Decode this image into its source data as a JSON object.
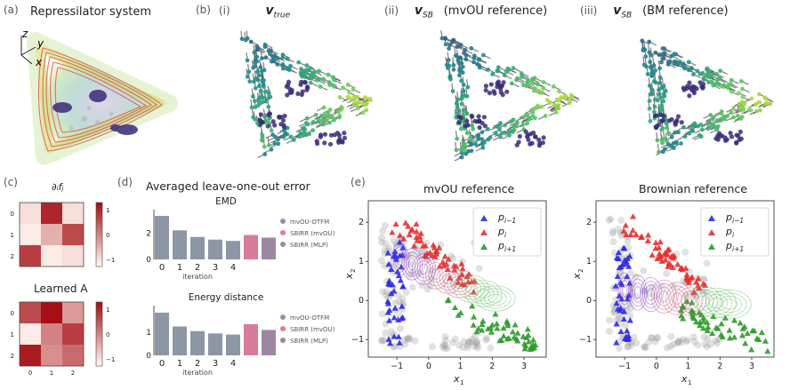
{
  "panel_a": {
    "label": "(a)",
    "title": "Repressilator system",
    "axes": [
      "z",
      "y",
      "x"
    ]
  },
  "panel_b": {
    "label": "(b)",
    "sub": [
      {
        "roman": "(i)",
        "var": "v",
        "sub": "true",
        "rest": ""
      },
      {
        "roman": "(ii)",
        "var": "v",
        "sub": "SB",
        "rest": "(mvOU reference)"
      },
      {
        "roman": "(iii)",
        "var": "v",
        "sub": "SB",
        "rest": "(BM reference)"
      }
    ]
  },
  "panel_c": {
    "label": "(c)",
    "title_top": "∂ᵢfⱼ",
    "title_bottom": "Learned A",
    "top_matrix": [
      [
        0.1,
        0.9,
        0.1
      ],
      [
        0.05,
        0.3,
        0.75
      ],
      [
        0.8,
        0.05,
        0.1
      ]
    ],
    "bottom_matrix": [
      [
        0.75,
        1.0,
        0.4
      ],
      [
        0.05,
        0.5,
        0.8
      ],
      [
        0.95,
        0.45,
        0.6
      ]
    ],
    "row_ticks": [
      "0",
      "1",
      "2"
    ],
    "col_ticks": [
      "0",
      "1",
      "2"
    ],
    "cbar_ticks": [
      "1",
      "0",
      "−1"
    ]
  },
  "panel_d": {
    "label": "(d)",
    "title": "Averaged leave-one-out error",
    "legend": [
      "mvOU-OTFM",
      "SBIRR (mvOU)",
      "SBIRR (MLP)"
    ],
    "legend_colors": [
      "#8c96a5",
      "#d97b9a",
      "#9e86a1"
    ],
    "colors": [
      "#8c96a5",
      "#8c96a5",
      "#8c96a5",
      "#8c96a5",
      "#8c96a5",
      "#d97b9a",
      "#9e86a1"
    ],
    "xticks": [
      "0",
      "1",
      "2",
      "3",
      "4"
    ],
    "xlabel": "iteration",
    "emd": {
      "subtitle": "EMD",
      "values": [
        3.3,
        2.2,
        1.7,
        1.5,
        1.4,
        1.85,
        1.65
      ],
      "yticks": [
        "0",
        "2"
      ],
      "ymax": 3.5
    },
    "energy": {
      "subtitle": "Energy distance",
      "values": [
        1.85,
        1.25,
        1.05,
        0.95,
        0.9,
        1.35,
        1.1
      ],
      "yticks": [
        "0",
        "1"
      ],
      "ymax": 2.0
    }
  },
  "panel_e": {
    "label": "(e)",
    "plots": [
      {
        "title": "mvOU reference"
      },
      {
        "title": "Brownian reference"
      }
    ],
    "xticks": [
      "−1",
      "0",
      "1",
      "2",
      "3"
    ],
    "yticks": [
      "−1",
      "0",
      "1",
      "2"
    ],
    "xlabel": "x",
    "xlabel_sub": "1",
    "ylabel": "x",
    "ylabel_sub": "2",
    "legend": [
      {
        "base": "p",
        "sub": "i−1",
        "color": "#2a2ae6"
      },
      {
        "base": "p",
        "sub": "i",
        "color": "#e53030"
      },
      {
        "base": "p",
        "sub": "i+1",
        "color": "#2e9a2e"
      }
    ]
  }
}
